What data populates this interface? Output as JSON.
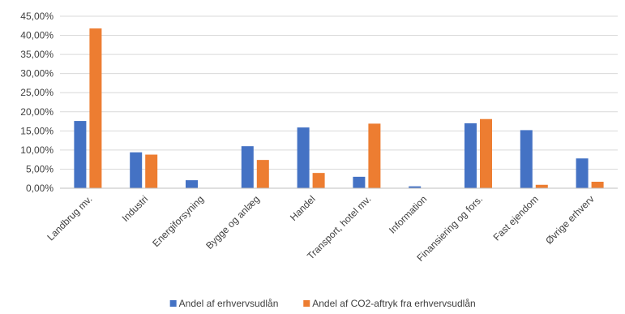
{
  "chart_data": {
    "type": "bar",
    "title": "",
    "caption_fragment": "",
    "xlabel": "",
    "ylabel": "",
    "ylim": [
      0,
      45
    ],
    "y_ticks": [
      0,
      5,
      10,
      15,
      20,
      25,
      30,
      35,
      40,
      45
    ],
    "y_tick_labels": [
      "0,00%",
      "5,00%",
      "10,00%",
      "15,00%",
      "20,00%",
      "25,00%",
      "30,00%",
      "35,00%",
      "40,00%",
      "45,00%"
    ],
    "grid": true,
    "legend_position": "bottom",
    "categories": [
      "Landbrug mv.",
      "Industri",
      "Energiforsyning",
      "Bygge og anlæg",
      "Handel",
      "Transport, hotel mv.",
      "Information",
      "Finansiering og fors.",
      "Fast ejendom",
      "Øvrige erhverv"
    ],
    "series": [
      {
        "name": "Andel af erhvervsudlån",
        "color": "#4472c4",
        "values": [
          17.6,
          9.4,
          2.1,
          11.0,
          15.9,
          3.0,
          0.5,
          17.0,
          15.2,
          7.8
        ]
      },
      {
        "name": "Andel af CO2-aftryk fra erhvervsudlån",
        "color": "#ed7d31",
        "values": [
          41.8,
          8.8,
          0.0,
          7.4,
          4.0,
          16.9,
          0.0,
          18.1,
          0.9,
          1.7
        ]
      }
    ]
  }
}
